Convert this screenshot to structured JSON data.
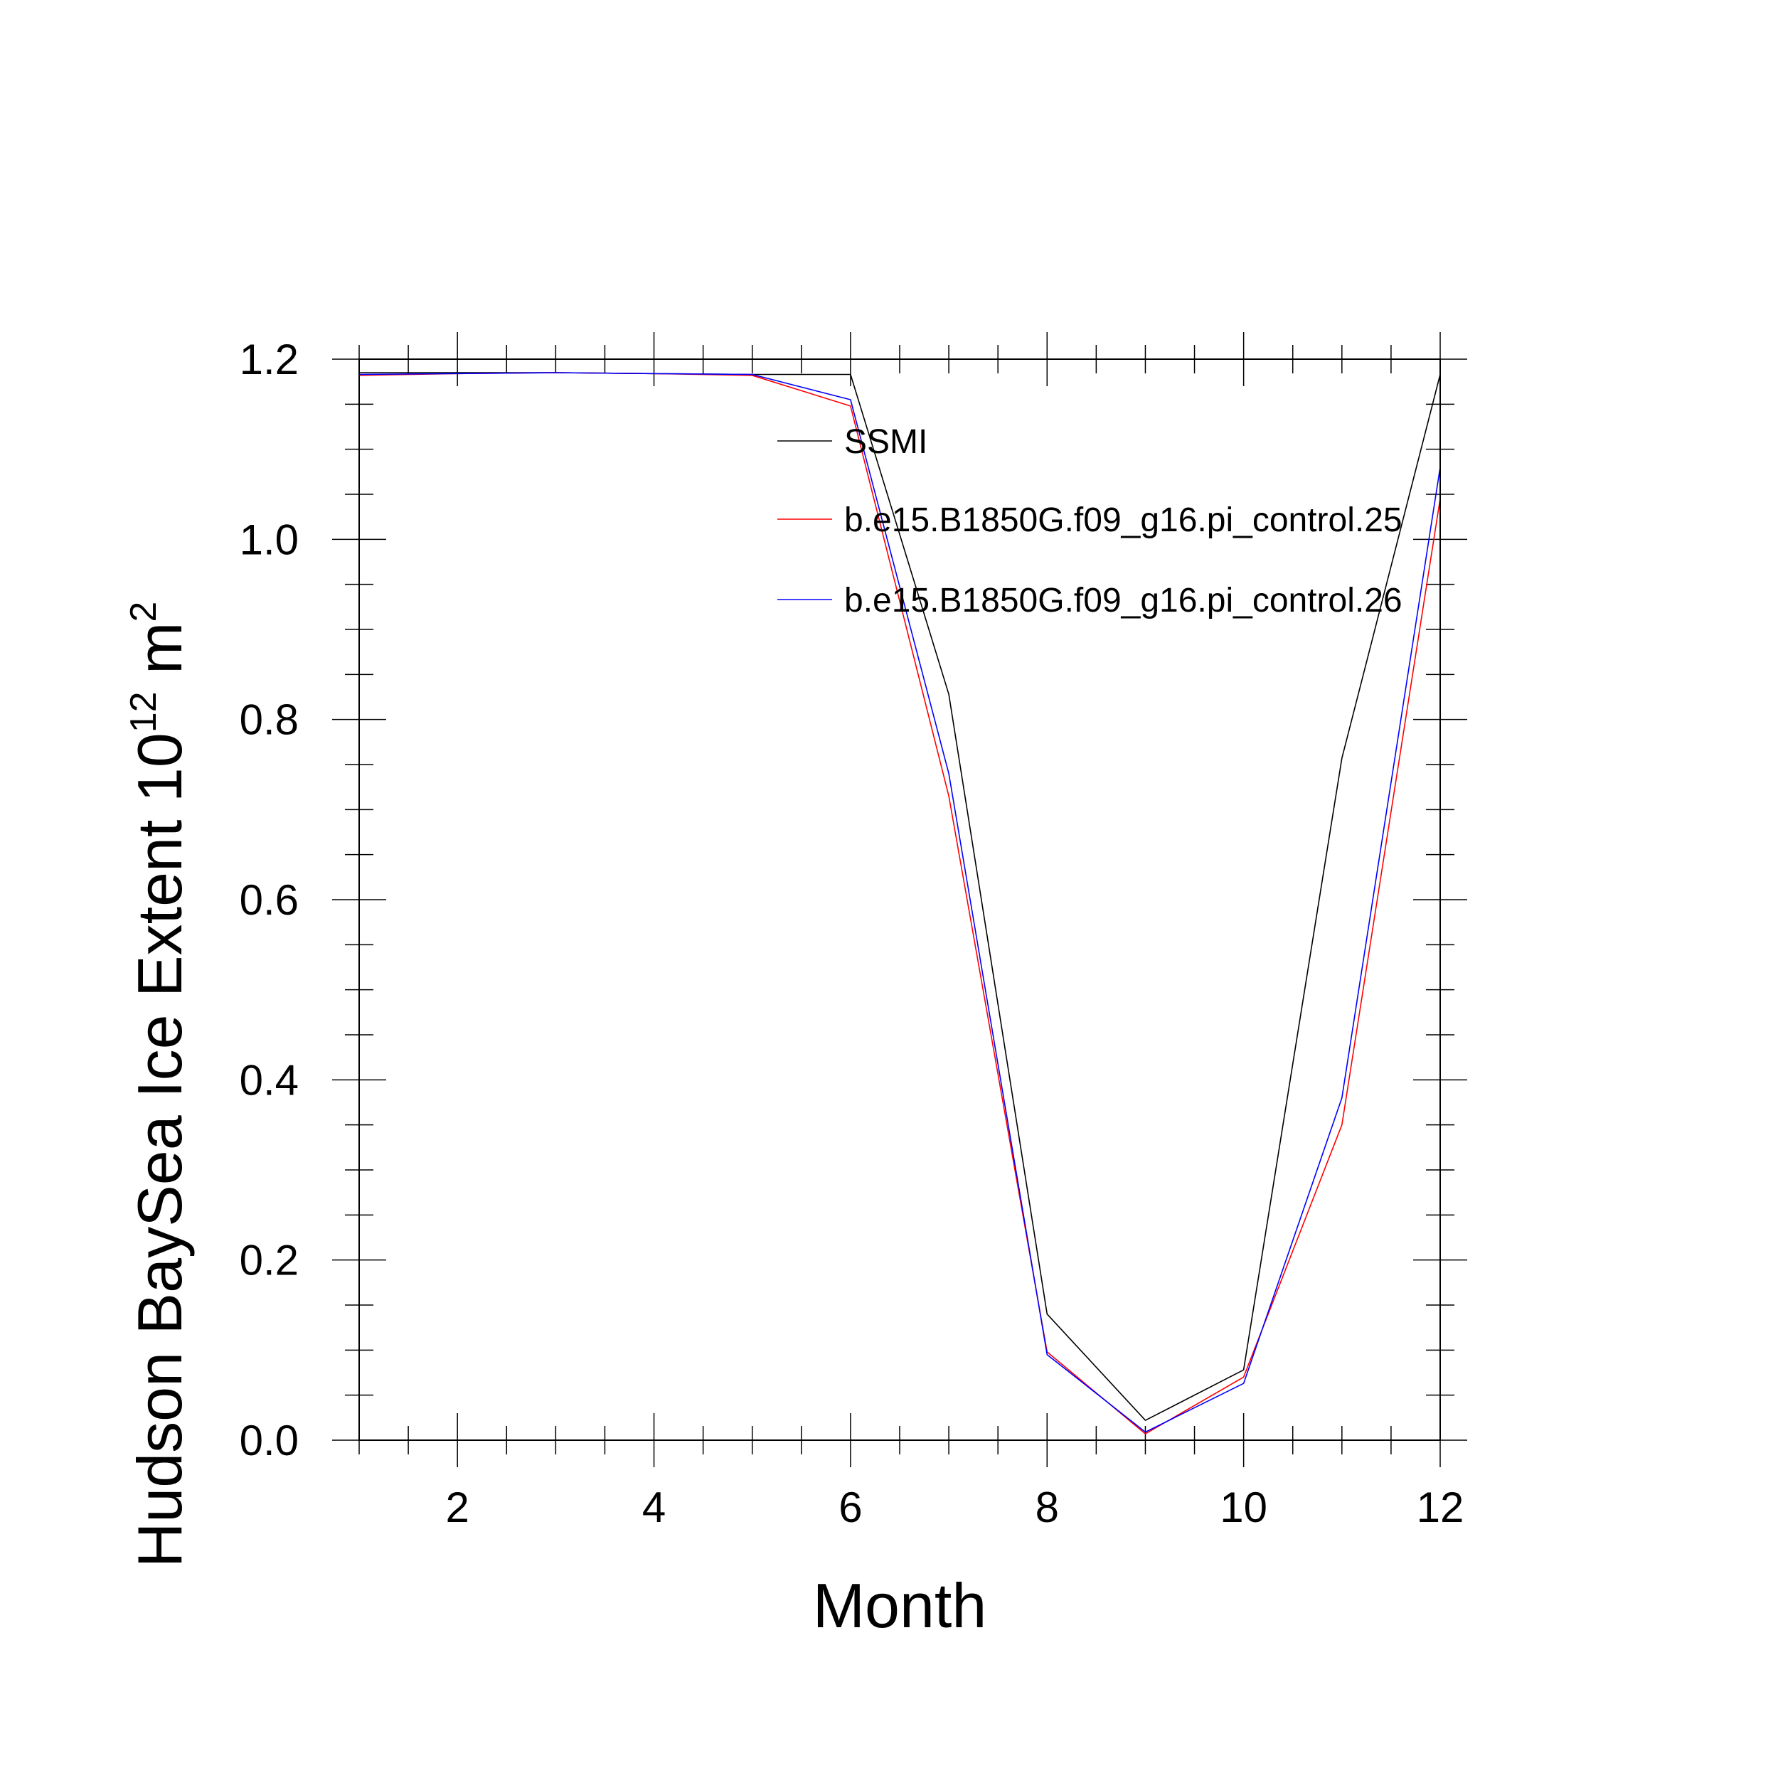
{
  "chart_data": {
    "type": "line",
    "title": "",
    "xlabel": "Month",
    "ylabel": {
      "main": "Hudson BaySea Ice Extent 10",
      "superscript": "12",
      "unit": " m",
      "unit_superscript": "2"
    },
    "xlim": [
      1,
      12
    ],
    "ylim": [
      0,
      1.2
    ],
    "x_ticks": [
      2,
      4,
      6,
      8,
      10,
      12
    ],
    "x_tick_labels": [
      "2",
      "4",
      "6",
      "8",
      "10",
      "12"
    ],
    "y_ticks": [
      0,
      0.2,
      0.4,
      0.6,
      0.8,
      1.0,
      1.2
    ],
    "y_tick_labels": [
      "0.0",
      "0.2",
      "0.4",
      "0.6",
      "0.8",
      "1.0",
      "1.2"
    ],
    "grid": false,
    "legend_position": "top-right",
    "x": [
      1,
      2,
      3,
      4,
      5,
      6,
      7,
      8,
      9,
      10,
      11,
      12
    ],
    "series": [
      {
        "name": "SSMI",
        "color": "#000000",
        "values": [
          1.185,
          1.185,
          1.185,
          1.184,
          1.183,
          1.183,
          0.828,
          0.14,
          0.022,
          0.078,
          0.757,
          1.183
        ]
      },
      {
        "name": "b.e15.B1850G.f09_g16.pi_control.25",
        "color": "#ff0000",
        "values": [
          1.182,
          1.184,
          1.185,
          1.184,
          1.182,
          1.148,
          0.715,
          0.098,
          0.007,
          0.07,
          0.35,
          1.045
        ]
      },
      {
        "name": "b.e15.B1850G.f09_g16.pi_control.26",
        "color": "#0000ff",
        "values": [
          1.183,
          1.184,
          1.185,
          1.184,
          1.183,
          1.155,
          0.74,
          0.095,
          0.009,
          0.063,
          0.38,
          1.08
        ]
      }
    ]
  }
}
